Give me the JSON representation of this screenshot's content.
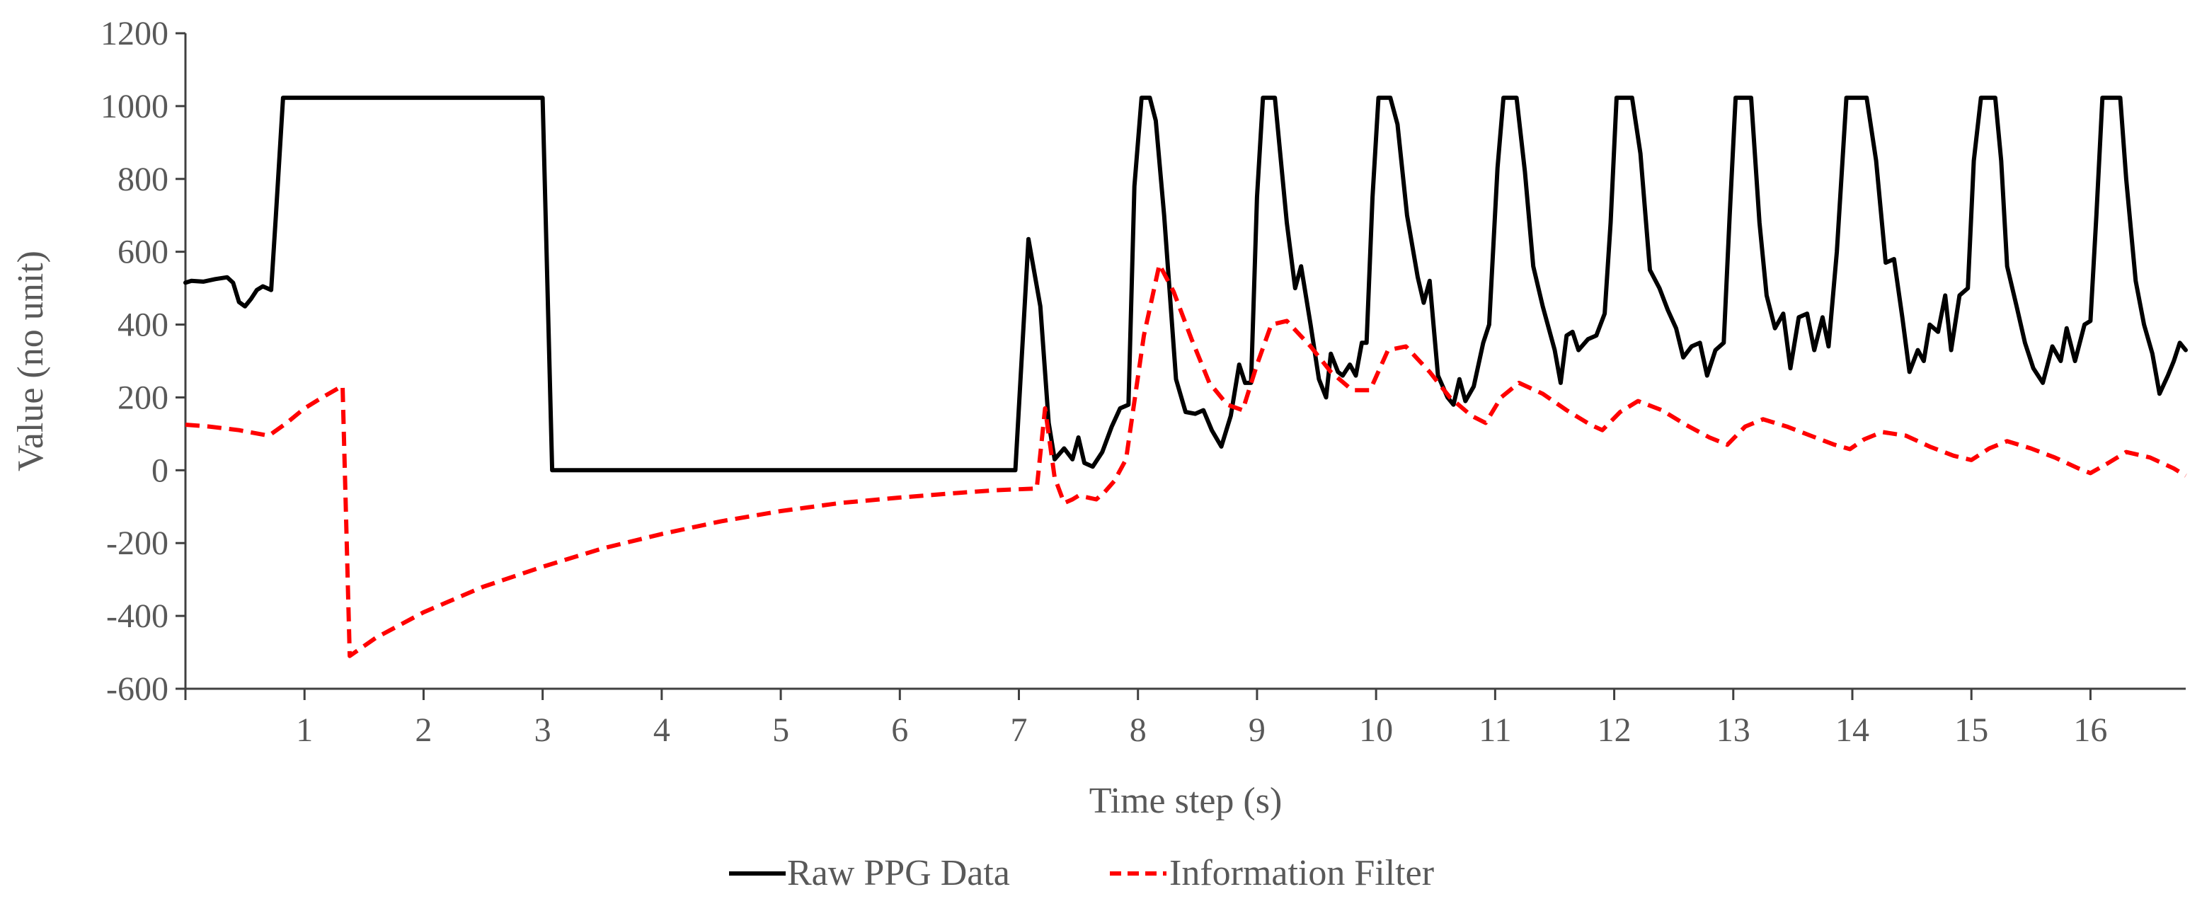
{
  "chart_data": {
    "type": "line",
    "title": "",
    "xlabel": "Time step (s)",
    "ylabel": "Value (no unit)",
    "xlim": [
      0,
      16.8
    ],
    "ylim": [
      -600,
      1200
    ],
    "x_ticks": [
      1,
      2,
      3,
      4,
      5,
      6,
      7,
      8,
      9,
      10,
      11,
      12,
      13,
      14,
      15,
      16
    ],
    "x_tick_labels": [
      "1",
      "2",
      "3",
      "4",
      "5",
      "6",
      "7",
      "8",
      "9",
      "10",
      "11",
      "12",
      "13",
      "14",
      "15",
      "16"
    ],
    "y_ticks": [
      1200,
      1000,
      800,
      600,
      400,
      200,
      0,
      -200,
      -400,
      -600
    ],
    "y_tick_labels": [
      "1200",
      "1000",
      "800",
      "600",
      "400",
      "200",
      "0",
      "-200",
      "-400",
      "-600"
    ],
    "grid": false,
    "legend_position": "bottom-center",
    "series": [
      {
        "name": "Raw PPG Data",
        "color": "#000000",
        "dash": "solid",
        "points": [
          [
            0,
            515
          ],
          [
            0.05,
            520
          ],
          [
            0.15,
            518
          ],
          [
            0.25,
            525
          ],
          [
            0.35,
            530
          ],
          [
            0.4,
            515
          ],
          [
            0.45,
            462
          ],
          [
            0.5,
            450
          ],
          [
            0.55,
            470
          ],
          [
            0.6,
            495
          ],
          [
            0.65,
            505
          ],
          [
            0.72,
            495
          ],
          [
            0.76,
            700
          ],
          [
            0.82,
            1023
          ],
          [
            3.0,
            1023
          ],
          [
            3.08,
            0
          ],
          [
            6.97,
            0
          ],
          [
            7.08,
            635
          ],
          [
            7.18,
            450
          ],
          [
            7.25,
            130
          ],
          [
            7.3,
            30
          ],
          [
            7.38,
            60
          ],
          [
            7.45,
            30
          ],
          [
            7.5,
            90
          ],
          [
            7.55,
            20
          ],
          [
            7.62,
            10
          ],
          [
            7.7,
            50
          ],
          [
            7.78,
            120
          ],
          [
            7.85,
            170
          ],
          [
            7.92,
            180
          ],
          [
            7.97,
            780
          ],
          [
            8.03,
            1023
          ],
          [
            8.1,
            1023
          ],
          [
            8.15,
            960
          ],
          [
            8.22,
            700
          ],
          [
            8.32,
            250
          ],
          [
            8.4,
            160
          ],
          [
            8.48,
            155
          ],
          [
            8.55,
            165
          ],
          [
            8.62,
            110
          ],
          [
            8.7,
            65
          ],
          [
            8.78,
            150
          ],
          [
            8.85,
            290
          ],
          [
            8.9,
            240
          ],
          [
            8.95,
            240
          ],
          [
            9.0,
            750
          ],
          [
            9.05,
            1023
          ],
          [
            9.15,
            1023
          ],
          [
            9.25,
            680
          ],
          [
            9.32,
            500
          ],
          [
            9.37,
            560
          ],
          [
            9.45,
            400
          ],
          [
            9.52,
            250
          ],
          [
            9.58,
            200
          ],
          [
            9.62,
            320
          ],
          [
            9.68,
            270
          ],
          [
            9.72,
            260
          ],
          [
            9.78,
            290
          ],
          [
            9.83,
            260
          ],
          [
            9.88,
            350
          ],
          [
            9.92,
            350
          ],
          [
            9.97,
            750
          ],
          [
            10.02,
            1023
          ],
          [
            10.12,
            1023
          ],
          [
            10.18,
            950
          ],
          [
            10.26,
            700
          ],
          [
            10.35,
            530
          ],
          [
            10.4,
            460
          ],
          [
            10.45,
            520
          ],
          [
            10.52,
            260
          ],
          [
            10.6,
            200
          ],
          [
            10.65,
            180
          ],
          [
            10.7,
            250
          ],
          [
            10.75,
            190
          ],
          [
            10.82,
            230
          ],
          [
            10.9,
            350
          ],
          [
            10.95,
            400
          ],
          [
            11.02,
            830
          ],
          [
            11.07,
            1023
          ],
          [
            11.18,
            1023
          ],
          [
            11.25,
            820
          ],
          [
            11.32,
            560
          ],
          [
            11.4,
            450
          ],
          [
            11.5,
            330
          ],
          [
            11.55,
            240
          ],
          [
            11.6,
            370
          ],
          [
            11.65,
            380
          ],
          [
            11.7,
            330
          ],
          [
            11.78,
            360
          ],
          [
            11.85,
            370
          ],
          [
            11.92,
            430
          ],
          [
            11.97,
            680
          ],
          [
            12.02,
            1023
          ],
          [
            12.15,
            1023
          ],
          [
            12.22,
            870
          ],
          [
            12.3,
            550
          ],
          [
            12.38,
            500
          ],
          [
            12.45,
            440
          ],
          [
            12.52,
            390
          ],
          [
            12.58,
            310
          ],
          [
            12.65,
            340
          ],
          [
            12.72,
            350
          ],
          [
            12.78,
            260
          ],
          [
            12.85,
            330
          ],
          [
            12.92,
            350
          ],
          [
            12.97,
            700
          ],
          [
            13.02,
            1023
          ],
          [
            13.15,
            1023
          ],
          [
            13.22,
            680
          ],
          [
            13.28,
            480
          ],
          [
            13.35,
            390
          ],
          [
            13.42,
            430
          ],
          [
            13.48,
            280
          ],
          [
            13.55,
            420
          ],
          [
            13.62,
            430
          ],
          [
            13.68,
            330
          ],
          [
            13.75,
            420
          ],
          [
            13.8,
            340
          ],
          [
            13.87,
            600
          ],
          [
            13.95,
            1023
          ],
          [
            14.12,
            1023
          ],
          [
            14.2,
            850
          ],
          [
            14.28,
            570
          ],
          [
            14.35,
            580
          ],
          [
            14.42,
            420
          ],
          [
            14.48,
            270
          ],
          [
            14.55,
            330
          ],
          [
            14.6,
            300
          ],
          [
            14.65,
            400
          ],
          [
            14.72,
            380
          ],
          [
            14.78,
            480
          ],
          [
            14.83,
            330
          ],
          [
            14.9,
            480
          ],
          [
            14.97,
            500
          ],
          [
            15.02,
            850
          ],
          [
            15.08,
            1023
          ],
          [
            15.2,
            1023
          ],
          [
            15.25,
            850
          ],
          [
            15.3,
            560
          ],
          [
            15.38,
            450
          ],
          [
            15.45,
            350
          ],
          [
            15.52,
            280
          ],
          [
            15.6,
            240
          ],
          [
            15.68,
            340
          ],
          [
            15.75,
            300
          ],
          [
            15.8,
            390
          ],
          [
            15.87,
            300
          ],
          [
            15.95,
            400
          ],
          [
            16.0,
            410
          ],
          [
            16.05,
            700
          ],
          [
            16.1,
            1023
          ],
          [
            16.25,
            1023
          ],
          [
            16.3,
            800
          ],
          [
            16.38,
            520
          ],
          [
            16.45,
            400
          ],
          [
            16.52,
            320
          ],
          [
            16.58,
            210
          ],
          [
            16.65,
            260
          ],
          [
            16.7,
            300
          ],
          [
            16.75,
            350
          ],
          [
            16.8,
            330
          ]
        ]
      },
      {
        "name": "Information Filter",
        "color": "#ff0000",
        "dash": "dashed",
        "points": [
          [
            0,
            125
          ],
          [
            0.2,
            120
          ],
          [
            0.45,
            110
          ],
          [
            0.7,
            95
          ],
          [
            0.85,
            130
          ],
          [
            1.0,
            170
          ],
          [
            1.15,
            200
          ],
          [
            1.32,
            232
          ],
          [
            1.38,
            -510
          ],
          [
            1.6,
            -460
          ],
          [
            2.0,
            -390
          ],
          [
            2.5,
            -320
          ],
          [
            3.0,
            -265
          ],
          [
            3.5,
            -215
          ],
          [
            4.0,
            -175
          ],
          [
            4.5,
            -140
          ],
          [
            5.0,
            -112
          ],
          [
            5.5,
            -90
          ],
          [
            6.0,
            -75
          ],
          [
            6.5,
            -62
          ],
          [
            6.8,
            -55
          ],
          [
            7.15,
            -50
          ],
          [
            7.22,
            170
          ],
          [
            7.3,
            -20
          ],
          [
            7.38,
            -90
          ],
          [
            7.45,
            -80
          ],
          [
            7.5,
            -70
          ],
          [
            7.58,
            -75
          ],
          [
            7.65,
            -80
          ],
          [
            7.72,
            -60
          ],
          [
            7.8,
            -30
          ],
          [
            7.9,
            30
          ],
          [
            8.05,
            370
          ],
          [
            8.18,
            565
          ],
          [
            8.3,
            490
          ],
          [
            8.45,
            360
          ],
          [
            8.6,
            240
          ],
          [
            8.75,
            180
          ],
          [
            8.88,
            165
          ],
          [
            9.0,
            290
          ],
          [
            9.12,
            400
          ],
          [
            9.25,
            410
          ],
          [
            9.45,
            340
          ],
          [
            9.62,
            270
          ],
          [
            9.8,
            220
          ],
          [
            9.95,
            220
          ],
          [
            10.1,
            330
          ],
          [
            10.25,
            340
          ],
          [
            10.45,
            270
          ],
          [
            10.62,
            200
          ],
          [
            10.8,
            150
          ],
          [
            10.92,
            130
          ],
          [
            11.05,
            200
          ],
          [
            11.2,
            240
          ],
          [
            11.4,
            210
          ],
          [
            11.6,
            165
          ],
          [
            11.8,
            125
          ],
          [
            11.9,
            110
          ],
          [
            12.05,
            160
          ],
          [
            12.2,
            190
          ],
          [
            12.4,
            165
          ],
          [
            12.6,
            125
          ],
          [
            12.8,
            90
          ],
          [
            12.95,
            70
          ],
          [
            13.1,
            120
          ],
          [
            13.25,
            140
          ],
          [
            13.45,
            120
          ],
          [
            13.65,
            95
          ],
          [
            13.85,
            70
          ],
          [
            13.98,
            58
          ],
          [
            14.1,
            85
          ],
          [
            14.25,
            105
          ],
          [
            14.45,
            95
          ],
          [
            14.65,
            65
          ],
          [
            14.85,
            40
          ],
          [
            15.0,
            28
          ],
          [
            15.15,
            60
          ],
          [
            15.3,
            80
          ],
          [
            15.5,
            60
          ],
          [
            15.7,
            35
          ],
          [
            15.9,
            5
          ],
          [
            16.0,
            -8
          ],
          [
            16.15,
            20
          ],
          [
            16.3,
            50
          ],
          [
            16.5,
            35
          ],
          [
            16.7,
            5
          ],
          [
            16.8,
            -15
          ]
        ]
      }
    ]
  }
}
